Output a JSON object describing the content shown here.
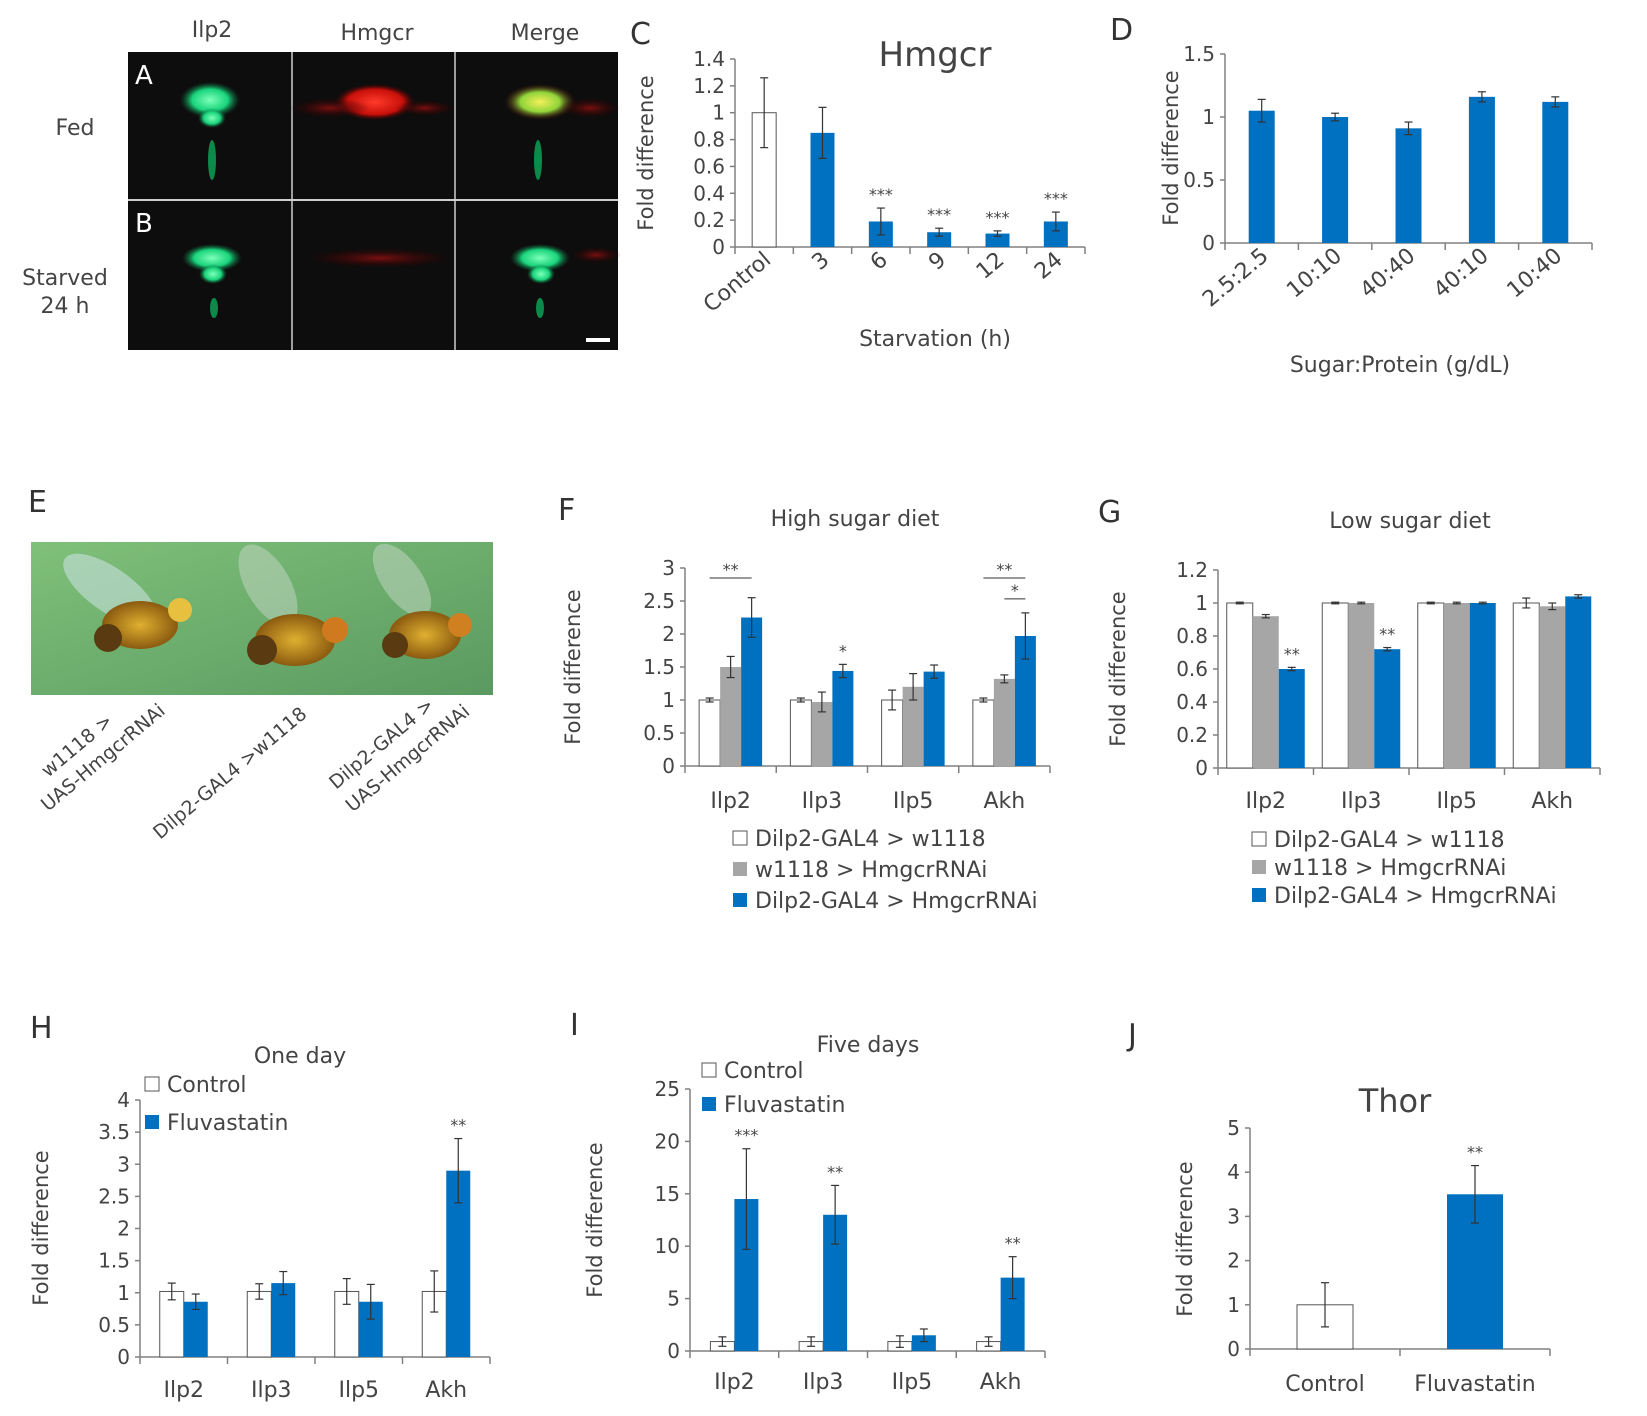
{
  "colors": {
    "control": "#ffffff",
    "gray": "#a6a6a6",
    "treated": "#0070c0",
    "axis": "#808080"
  },
  "panels_AB": {
    "letters": [
      "A",
      "B"
    ],
    "column_headers": [
      "Ilp2",
      "Hmgcr",
      "Merge"
    ],
    "row_labels": [
      "Fed",
      "Starved\n24 h"
    ]
  },
  "panel_E": {
    "letter": "E",
    "genotypes": [
      {
        "line1": "w1118 >",
        "line2": "UAS-HmgcrRNAi"
      },
      {
        "line1": "Dilp2-GAL4 >w1118",
        "line2": ""
      },
      {
        "line1": "Dilp2-GAL4 >",
        "line2": "UAS-HmgcrRNAi"
      }
    ]
  },
  "chart_data": [
    {
      "id": "C",
      "letter": "C",
      "type": "bar",
      "title": "Hmgcr",
      "xlabel": "Starvation (h)",
      "ylabel": "Fold difference",
      "ylim": [
        0,
        1.4
      ],
      "yticks": [
        0,
        0.2,
        0.4,
        0.6,
        0.8,
        1,
        1.2,
        1.4
      ],
      "ytick_labels": [
        "0",
        "0.2",
        "0.4",
        "0.6",
        "0.8",
        "1",
        "1.2",
        "1.4"
      ],
      "categories": [
        "Control",
        "3",
        "6",
        "9",
        "12",
        "24"
      ],
      "tick_rotate": -40,
      "grid": false,
      "series": [
        {
          "name": "Hmgcr",
          "values": [
            1.0,
            0.85,
            0.19,
            0.11,
            0.1,
            0.19
          ],
          "errors": [
            0.26,
            0.19,
            0.1,
            0.03,
            0.02,
            0.07
          ],
          "colors": [
            "control",
            "treated",
            "treated",
            "treated",
            "treated",
            "treated"
          ]
        }
      ],
      "significance": [
        "",
        "",
        "***",
        "***",
        "***",
        "***"
      ]
    },
    {
      "id": "D",
      "letter": "D",
      "type": "bar",
      "title": "",
      "xlabel": "Sugar:Protein (g/dL)",
      "ylabel": "Fold difference",
      "ylim": [
        0,
        1.5
      ],
      "yticks": [
        0,
        0.5,
        1,
        1.5
      ],
      "ytick_labels": [
        "0",
        "0.5",
        "1",
        "1.5"
      ],
      "categories": [
        "2.5:2.5",
        "10:10",
        "40:40",
        "40:10",
        "10:40"
      ],
      "tick_rotate": -40,
      "grid": false,
      "series": [
        {
          "name": "Hmgcr",
          "values": [
            1.05,
            1.0,
            0.91,
            1.16,
            1.12
          ],
          "errors": [
            0.09,
            0.03,
            0.05,
            0.04,
            0.04
          ],
          "colors": [
            "treated",
            "treated",
            "treated",
            "treated",
            "treated"
          ]
        }
      ]
    },
    {
      "id": "F",
      "letter": "F",
      "type": "bar",
      "title": "High sugar diet",
      "xlabel": "",
      "ylabel": "Fold difference",
      "ylim": [
        0,
        3
      ],
      "yticks": [
        0,
        0.5,
        1,
        1.5,
        2,
        2.5,
        3
      ],
      "ytick_labels": [
        "0",
        "0.5",
        "1",
        "1.5",
        "2",
        "2.5",
        "3"
      ],
      "categories": [
        "Ilp2",
        "Ilp3",
        "Ilp5",
        "Akh"
      ],
      "grid": false,
      "series": [
        {
          "name": "Dilp2-GAL4  > w1118",
          "color": "control",
          "values": [
            1.0,
            1.0,
            1.0,
            1.0
          ],
          "errors": [
            0.03,
            0.03,
            0.15,
            0.03
          ]
        },
        {
          "name": "w1118 > HmgcrRNAi",
          "color": "gray",
          "values": [
            1.5,
            0.97,
            1.2,
            1.32
          ],
          "errors": [
            0.16,
            0.15,
            0.2,
            0.06
          ]
        },
        {
          "name": "Dilp2-GAL4 > HmgcrRNAi",
          "color": "treated",
          "values": [
            2.25,
            1.44,
            1.43,
            1.97
          ],
          "errors": [
            0.3,
            0.1,
            0.1,
            0.35
          ]
        }
      ],
      "significance_marks": [
        {
          "category": 0,
          "text": "**",
          "bracket": [
            0,
            2
          ]
        },
        {
          "category": 1,
          "text": "*"
        },
        {
          "category": 3,
          "text": "**",
          "bracket": [
            0,
            2
          ]
        },
        {
          "category": 3,
          "text": "*",
          "bracket": [
            1,
            2
          ]
        }
      ]
    },
    {
      "id": "G",
      "letter": "G",
      "type": "bar",
      "title": "Low sugar diet",
      "xlabel": "",
      "ylabel": "Fold difference",
      "ylim": [
        0,
        1.2
      ],
      "yticks": [
        0,
        0.2,
        0.4,
        0.6,
        0.8,
        1,
        1.2
      ],
      "ytick_labels": [
        "0",
        "0.2",
        "0.4",
        "0.6",
        "0.8",
        "1",
        "1.2"
      ],
      "categories": [
        "Ilp2",
        "Ilp3",
        "Ilp5",
        "Akh"
      ],
      "grid": false,
      "series": [
        {
          "name": "Dilp2-GAL4 > w1118",
          "color": "control",
          "values": [
            1.0,
            1.0,
            1.0,
            1.0
          ],
          "errors": [
            0.005,
            0.005,
            0.005,
            0.03
          ]
        },
        {
          "name": "w1118 > HmgcrRNAi",
          "color": "gray",
          "values": [
            0.92,
            1.0,
            1.0,
            0.98
          ],
          "errors": [
            0.01,
            0.005,
            0.005,
            0.02
          ]
        },
        {
          "name": "Dilp2-GAL4 > HmgcrRNAi",
          "color": "treated",
          "values": [
            0.6,
            0.72,
            1.0,
            1.04
          ],
          "errors": [
            0.01,
            0.01,
            0.005,
            0.01
          ]
        }
      ],
      "significance_marks": [
        {
          "category": 0,
          "text": "**"
        },
        {
          "category": 1,
          "text": "**"
        }
      ]
    },
    {
      "id": "H",
      "letter": "H",
      "type": "bar",
      "title": "One day",
      "xlabel": "",
      "ylabel": "Fold difference",
      "ylim": [
        0,
        4
      ],
      "yticks": [
        0,
        0.5,
        1,
        1.5,
        2,
        2.5,
        3,
        3.5,
        4
      ],
      "ytick_labels": [
        "0",
        "0.5",
        "1",
        "1.5",
        "2",
        "2.5",
        "3",
        "3.5",
        "4"
      ],
      "categories": [
        "Ilp2",
        "Ilp3",
        "Ilp5",
        "Akh"
      ],
      "grid": false,
      "series": [
        {
          "name": "Control",
          "color": "control",
          "values": [
            1.02,
            1.02,
            1.02,
            1.02
          ],
          "errors": [
            0.13,
            0.12,
            0.2,
            0.32
          ]
        },
        {
          "name": "Fluvastatin",
          "color": "treated",
          "values": [
            0.86,
            1.15,
            0.86,
            2.9
          ],
          "errors": [
            0.12,
            0.18,
            0.27,
            0.5
          ]
        }
      ],
      "significance_marks": [
        {
          "category": 3,
          "text": "**"
        }
      ],
      "legend_position": "top-left"
    },
    {
      "id": "I",
      "letter": "I",
      "type": "bar",
      "title": "Five days",
      "xlabel": "",
      "ylabel": "Fold difference",
      "ylim": [
        0,
        25
      ],
      "yticks": [
        0,
        5,
        10,
        15,
        20,
        25
      ],
      "ytick_labels": [
        "0",
        "5",
        "10",
        "15",
        "20",
        "25"
      ],
      "categories": [
        "Ilp2",
        "Ilp3",
        "Ilp5",
        "Akh"
      ],
      "grid": false,
      "series": [
        {
          "name": "Control",
          "color": "control",
          "values": [
            0.9,
            0.9,
            0.9,
            0.9
          ],
          "errors": [
            0.45,
            0.45,
            0.55,
            0.45
          ]
        },
        {
          "name": "Fluvastatin",
          "color": "treated",
          "values": [
            14.5,
            13.0,
            1.5,
            7.0
          ],
          "errors": [
            4.8,
            2.8,
            0.6,
            2.0
          ]
        }
      ],
      "significance_marks": [
        {
          "category": 0,
          "text": "***"
        },
        {
          "category": 1,
          "text": "**"
        },
        {
          "category": 3,
          "text": "**"
        }
      ],
      "legend_position": "top-left"
    },
    {
      "id": "J",
      "letter": "J",
      "type": "bar",
      "title": "Thor",
      "xlabel": "",
      "ylabel": "Fold difference",
      "ylim": [
        0,
        5
      ],
      "yticks": [
        0,
        1,
        2,
        3,
        4,
        5
      ],
      "ytick_labels": [
        "0",
        "1",
        "2",
        "3",
        "4",
        "5"
      ],
      "categories": [
        "Control",
        "Fluvastatin"
      ],
      "grid": false,
      "series": [
        {
          "name": "Thor",
          "values": [
            1.0,
            3.5
          ],
          "errors": [
            0.5,
            0.65
          ],
          "colors": [
            "control",
            "treated"
          ]
        }
      ],
      "significance": [
        "",
        "**"
      ]
    }
  ]
}
